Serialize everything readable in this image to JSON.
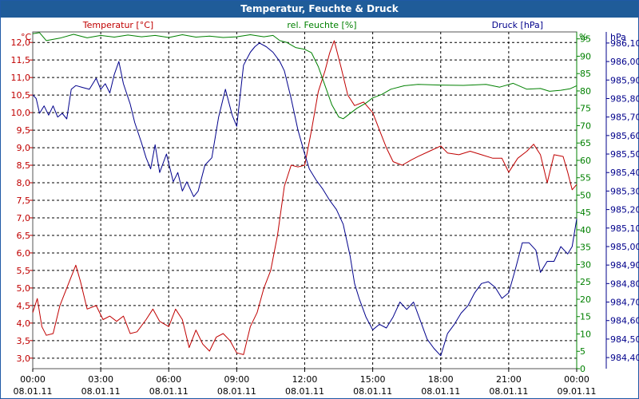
{
  "window": {
    "title": "Temperatur, Feuchte & Druck"
  },
  "chart_data": {
    "type": "line",
    "title": "Temperatur, Feuchte & Druck",
    "grid": true,
    "x_ticks": [
      {
        "time": "00:00",
        "date": "08.01.11"
      },
      {
        "time": "03:00",
        "date": "08.01.11"
      },
      {
        "time": "06:00",
        "date": "08.01.11"
      },
      {
        "time": "09:00",
        "date": "08.01.11"
      },
      {
        "time": "12:00",
        "date": "08.01.11"
      },
      {
        "time": "15:00",
        "date": "08.01.11"
      },
      {
        "time": "18:00",
        "date": "08.01.11"
      },
      {
        "time": "21:00",
        "date": "08.01.11"
      },
      {
        "time": "00:00",
        "date": "09.01.11"
      }
    ],
    "x_range_hours": [
      0,
      24
    ],
    "axes": {
      "temperature": {
        "title": "Temperatur [°C]",
        "unit": "°C",
        "color": "#c00000",
        "range": [
          2.7,
          12.3
        ],
        "step": 0.5,
        "decimals": 1
      },
      "humidity": {
        "title": "rel. Feuchte [%]",
        "unit": "%",
        "color": "#008000",
        "range": [
          0,
          97
        ],
        "step": 5,
        "decimals": 0
      },
      "pressure": {
        "title": "Druck [hPa]",
        "unit": "hPa",
        "color": "#00008b",
        "range": [
          984.34,
          986.16
        ],
        "step": 0.1,
        "decimals": 2
      }
    },
    "series": [
      {
        "name": "Temperatur [°C]",
        "axis": "temperature",
        "color": "#c00000",
        "points": [
          [
            0,
            4.3
          ],
          [
            0.2,
            4.7
          ],
          [
            0.4,
            3.9
          ],
          [
            0.6,
            3.65
          ],
          [
            0.9,
            3.7
          ],
          [
            1.2,
            4.5
          ],
          [
            1.5,
            5.0
          ],
          [
            1.9,
            5.65
          ],
          [
            2.1,
            5.2
          ],
          [
            2.4,
            4.4
          ],
          [
            2.8,
            4.5
          ],
          [
            3.1,
            4.1
          ],
          [
            3.4,
            4.2
          ],
          [
            3.7,
            4.05
          ],
          [
            4.0,
            4.2
          ],
          [
            4.3,
            3.7
          ],
          [
            4.6,
            3.75
          ],
          [
            5.0,
            4.1
          ],
          [
            5.3,
            4.4
          ],
          [
            5.6,
            4.05
          ],
          [
            6.0,
            3.9
          ],
          [
            6.3,
            4.4
          ],
          [
            6.6,
            4.1
          ],
          [
            6.9,
            3.3
          ],
          [
            7.2,
            3.8
          ],
          [
            7.5,
            3.4
          ],
          [
            7.8,
            3.2
          ],
          [
            8.1,
            3.6
          ],
          [
            8.4,
            3.7
          ],
          [
            8.7,
            3.5
          ],
          [
            9.0,
            3.15
          ],
          [
            9.3,
            3.1
          ],
          [
            9.6,
            3.9
          ],
          [
            9.9,
            4.3
          ],
          [
            10.2,
            5.0
          ],
          [
            10.5,
            5.5
          ],
          [
            10.8,
            6.5
          ],
          [
            11.1,
            7.9
          ],
          [
            11.4,
            8.5
          ],
          [
            11.7,
            8.45
          ],
          [
            12.0,
            8.5
          ],
          [
            12.3,
            9.5
          ],
          [
            12.6,
            10.6
          ],
          [
            12.9,
            11.2
          ],
          [
            13.1,
            11.7
          ],
          [
            13.3,
            12.05
          ],
          [
            13.6,
            11.3
          ],
          [
            13.9,
            10.5
          ],
          [
            14.2,
            10.2
          ],
          [
            14.6,
            10.3
          ],
          [
            15.0,
            10.0
          ],
          [
            15.3,
            9.5
          ],
          [
            15.6,
            9.0
          ],
          [
            15.9,
            8.6
          ],
          [
            16.3,
            8.5
          ],
          [
            16.7,
            8.65
          ],
          [
            17.0,
            8.75
          ],
          [
            17.5,
            8.9
          ],
          [
            18.0,
            9.05
          ],
          [
            18.3,
            8.85
          ],
          [
            18.8,
            8.8
          ],
          [
            19.3,
            8.9
          ],
          [
            19.8,
            8.8
          ],
          [
            20.3,
            8.7
          ],
          [
            20.7,
            8.7
          ],
          [
            21.0,
            8.3
          ],
          [
            21.4,
            8.7
          ],
          [
            21.8,
            8.9
          ],
          [
            22.1,
            9.1
          ],
          [
            22.4,
            8.8
          ],
          [
            22.7,
            8.0
          ],
          [
            23.0,
            8.8
          ],
          [
            23.4,
            8.75
          ],
          [
            23.6,
            8.3
          ],
          [
            23.8,
            7.8
          ],
          [
            24.0,
            7.95
          ]
        ]
      },
      {
        "name": "rel. Feuchte [%]",
        "axis": "humidity",
        "color": "#008000",
        "points": [
          [
            0,
            96.5
          ],
          [
            0.3,
            96.8
          ],
          [
            0.6,
            94.5
          ],
          [
            1.2,
            95.2
          ],
          [
            1.8,
            96.3
          ],
          [
            2.4,
            95.3
          ],
          [
            3.0,
            96.0
          ],
          [
            3.6,
            95.5
          ],
          [
            4.2,
            96.1
          ],
          [
            4.8,
            95.6
          ],
          [
            5.4,
            96.0
          ],
          [
            6.0,
            95.4
          ],
          [
            6.6,
            96.2
          ],
          [
            7.2,
            95.5
          ],
          [
            7.8,
            95.8
          ],
          [
            8.4,
            95.4
          ],
          [
            9.0,
            95.6
          ],
          [
            9.6,
            96.2
          ],
          [
            10.2,
            95.6
          ],
          [
            10.6,
            96.0
          ],
          [
            10.9,
            94.5
          ],
          [
            11.2,
            94.0
          ],
          [
            11.6,
            92.5
          ],
          [
            12.0,
            92.0
          ],
          [
            12.3,
            91.0
          ],
          [
            12.6,
            87.0
          ],
          [
            12.9,
            81.5
          ],
          [
            13.2,
            76.0
          ],
          [
            13.5,
            72.5
          ],
          [
            13.7,
            72.0
          ],
          [
            14.0,
            73.5
          ],
          [
            14.3,
            75.0
          ],
          [
            14.7,
            76.5
          ],
          [
            15.0,
            78.0
          ],
          [
            15.4,
            79.0
          ],
          [
            15.8,
            80.5
          ],
          [
            16.4,
            81.5
          ],
          [
            17.0,
            81.9
          ],
          [
            18.0,
            81.7
          ],
          [
            19.0,
            81.6
          ],
          [
            20.0,
            81.9
          ],
          [
            20.6,
            81.1
          ],
          [
            21.2,
            82.2
          ],
          [
            21.8,
            80.5
          ],
          [
            22.4,
            80.7
          ],
          [
            22.8,
            79.9
          ],
          [
            23.3,
            80.2
          ],
          [
            23.7,
            80.6
          ],
          [
            24.0,
            81.5
          ]
        ]
      },
      {
        "name": "Druck [hPa]",
        "axis": "pressure",
        "color": "#00008b",
        "points": [
          [
            0,
            985.82
          ],
          [
            0.15,
            985.8
          ],
          [
            0.3,
            985.72
          ],
          [
            0.5,
            985.76
          ],
          [
            0.7,
            985.71
          ],
          [
            0.9,
            985.76
          ],
          [
            1.1,
            985.7
          ],
          [
            1.3,
            985.72
          ],
          [
            1.5,
            985.69
          ],
          [
            1.7,
            985.85
          ],
          [
            1.9,
            985.87
          ],
          [
            2.2,
            985.86
          ],
          [
            2.5,
            985.85
          ],
          [
            2.8,
            985.91
          ],
          [
            3.0,
            985.85
          ],
          [
            3.2,
            985.88
          ],
          [
            3.4,
            985.83
          ],
          [
            3.6,
            985.93
          ],
          [
            3.8,
            986.0
          ],
          [
            4.0,
            985.88
          ],
          [
            4.3,
            985.77
          ],
          [
            4.5,
            985.67
          ],
          [
            4.8,
            985.56
          ],
          [
            5.0,
            985.48
          ],
          [
            5.2,
            985.42
          ],
          [
            5.4,
            985.55
          ],
          [
            5.6,
            985.4
          ],
          [
            5.9,
            985.5
          ],
          [
            6.2,
            985.35
          ],
          [
            6.4,
            985.4
          ],
          [
            6.6,
            985.3
          ],
          [
            6.8,
            985.35
          ],
          [
            7.1,
            985.27
          ],
          [
            7.3,
            985.3
          ],
          [
            7.6,
            985.44
          ],
          [
            7.9,
            985.48
          ],
          [
            8.2,
            985.7
          ],
          [
            8.5,
            985.85
          ],
          [
            8.8,
            985.71
          ],
          [
            9.0,
            985.65
          ],
          [
            9.3,
            985.98
          ],
          [
            9.6,
            986.05
          ],
          [
            9.8,
            986.08
          ],
          [
            10.0,
            986.1
          ],
          [
            10.3,
            986.08
          ],
          [
            10.6,
            986.05
          ],
          [
            10.9,
            986.0
          ],
          [
            11.1,
            985.95
          ],
          [
            11.4,
            985.8
          ],
          [
            11.7,
            985.63
          ],
          [
            12.0,
            985.5
          ],
          [
            12.2,
            985.42
          ],
          [
            12.5,
            985.36
          ],
          [
            12.8,
            985.31
          ],
          [
            13.1,
            985.25
          ],
          [
            13.4,
            985.2
          ],
          [
            13.7,
            985.12
          ],
          [
            14.0,
            984.95
          ],
          [
            14.2,
            984.8
          ],
          [
            14.4,
            984.72
          ],
          [
            14.7,
            984.62
          ],
          [
            15.0,
            984.55
          ],
          [
            15.3,
            984.58
          ],
          [
            15.6,
            984.56
          ],
          [
            15.9,
            984.62
          ],
          [
            16.2,
            984.7
          ],
          [
            16.5,
            984.66
          ],
          [
            16.8,
            984.7
          ],
          [
            17.1,
            984.6
          ],
          [
            17.4,
            984.5
          ],
          [
            17.7,
            984.45
          ],
          [
            18.0,
            984.41
          ],
          [
            18.3,
            984.53
          ],
          [
            18.6,
            984.58
          ],
          [
            18.9,
            984.64
          ],
          [
            19.2,
            984.68
          ],
          [
            19.5,
            984.75
          ],
          [
            19.8,
            984.8
          ],
          [
            20.1,
            984.81
          ],
          [
            20.4,
            984.78
          ],
          [
            20.7,
            984.72
          ],
          [
            21.0,
            984.75
          ],
          [
            21.3,
            984.88
          ],
          [
            21.6,
            985.02
          ],
          [
            21.9,
            985.02
          ],
          [
            22.2,
            984.98
          ],
          [
            22.4,
            984.86
          ],
          [
            22.7,
            984.92
          ],
          [
            23.0,
            984.92
          ],
          [
            23.3,
            985.0
          ],
          [
            23.6,
            984.96
          ],
          [
            23.8,
            985.0
          ],
          [
            24.0,
            985.15
          ]
        ]
      }
    ]
  }
}
